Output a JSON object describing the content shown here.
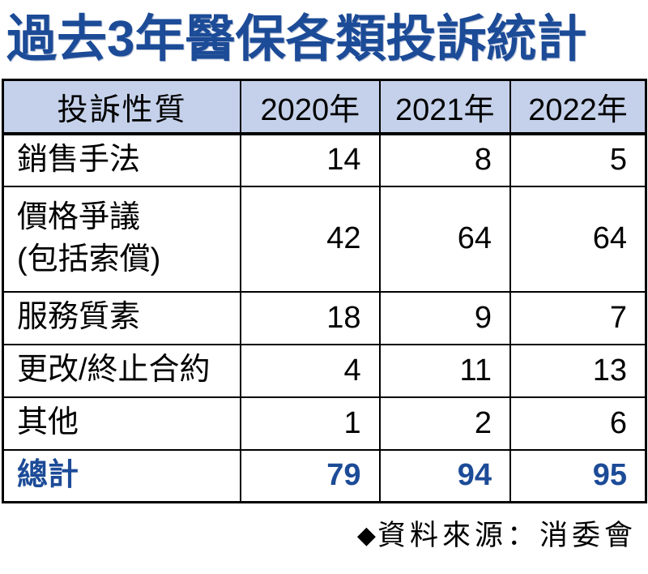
{
  "title": "過去3年醫保各類投訴統計",
  "colors": {
    "accent_blue": "#1c4b97",
    "header_bg": "#c5d1ea",
    "border": "#000000",
    "background": "#ffffff"
  },
  "table": {
    "headers": [
      "投訴性質",
      "2020年",
      "2021年",
      "2022年"
    ],
    "rows": [
      {
        "label": "銷售手法",
        "values": [
          "14",
          "8",
          "5"
        ]
      },
      {
        "label": "價格爭議\n(包括索償)",
        "values": [
          "42",
          "64",
          "64"
        ]
      },
      {
        "label": "服務質素",
        "values": [
          "18",
          "9",
          "7"
        ]
      },
      {
        "label": "更改/終止合約",
        "values": [
          "4",
          "11",
          "13"
        ]
      },
      {
        "label": "其他",
        "values": [
          "1",
          "2",
          "6"
        ]
      },
      {
        "label": "總計",
        "values": [
          "79",
          "94",
          "95"
        ]
      }
    ]
  },
  "footer": {
    "icon": "◆",
    "source": "資料來源：消委會"
  },
  "chart_data": {
    "type": "table",
    "title": "過去3年醫保各類投訴統計",
    "row_header": "投訴性質",
    "categories": [
      "2020年",
      "2021年",
      "2022年"
    ],
    "series": [
      {
        "name": "銷售手法",
        "values": [
          14,
          8,
          5
        ]
      },
      {
        "name": "價格爭議（包括索償）",
        "values": [
          42,
          64,
          64
        ]
      },
      {
        "name": "服務質素",
        "values": [
          18,
          9,
          7
        ]
      },
      {
        "name": "更改/終止合約",
        "values": [
          4,
          11,
          13
        ]
      },
      {
        "name": "其他",
        "values": [
          1,
          2,
          6
        ]
      },
      {
        "name": "總計",
        "values": [
          79,
          94,
          95
        ]
      }
    ],
    "source": "資料來源：消委會",
    "notes": "totals row emphasized in blue bold"
  }
}
